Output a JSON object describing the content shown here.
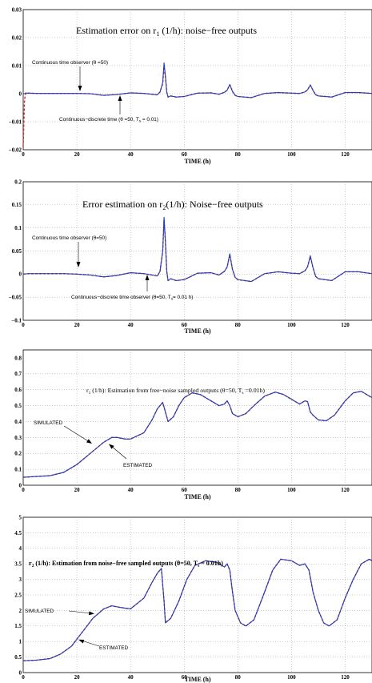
{
  "chart_data": [
    {
      "type": "line",
      "title_parts": [
        "Estimation error on r",
        "1",
        " (1/h): noise−free outputs"
      ],
      "xlabel": "TIME (h)",
      "xlim": [
        0,
        130
      ],
      "ylim": [
        -0.02,
        0.03
      ],
      "xticks": [
        0,
        20,
        40,
        60,
        80,
        100,
        120
      ],
      "yticks": [
        -0.02,
        -0.01,
        0,
        0.01,
        0.02,
        0.03
      ],
      "ytick_labels": [
        "−0.02",
        "−0.01",
        "0",
        "0.01",
        "0.02",
        "0.03"
      ],
      "annotations": [
        {
          "text": "Continuous time observer (θ =50)"
        },
        {
          "text": "Continuous−discrete time (θ =50, T",
          "sub": "s",
          "tail": " = 0.01)"
        }
      ],
      "series": [
        {
          "color": "#d62828",
          "dashed": true,
          "x": [
            0,
            0.5,
            1,
            2,
            5,
            10,
            15,
            20,
            25,
            30,
            35,
            40,
            45,
            50,
            51,
            52,
            52.5,
            53,
            53.5,
            54,
            55,
            57,
            60,
            65,
            70,
            73,
            75,
            76,
            77,
            78,
            79,
            80,
            85,
            90,
            95,
            100,
            103,
            105,
            106,
            107,
            108,
            109,
            110,
            115,
            120,
            125,
            130
          ],
          "y": [
            -0.019,
            -0.002,
            0.0003,
            0.0002,
            0.0001,
            0.0001,
            0.0001,
            0.0001,
            0,
            -0.0006,
            -0.0003,
            0.0003,
            0.0001,
            -0.0004,
            0.0006,
            0.0036,
            0.0095,
            0.006,
            0.0005,
            -0.0012,
            -0.0008,
            -0.0012,
            -0.001,
            0.0002,
            0.0003,
            -0.0002,
            0.0005,
            0.0012,
            0.0032,
            0.0008,
            -0.0006,
            -0.001,
            -0.0014,
            0.0001,
            0.0004,
            0.0002,
            0.0001,
            0.0006,
            0.0014,
            0.0031,
            0.0012,
            -0.0004,
            -0.0008,
            -0.0012,
            0.0004,
            0.0004,
            0.0001
          ]
        },
        {
          "color": "#1f3fbf",
          "dashed": false,
          "x": [
            0,
            0.5,
            1,
            2,
            5,
            10,
            15,
            20,
            25,
            30,
            35,
            40,
            45,
            50,
            51,
            52,
            52.5,
            53,
            53.5,
            54,
            55,
            57,
            60,
            65,
            70,
            73,
            75,
            76,
            77,
            78,
            79,
            80,
            85,
            90,
            95,
            100,
            103,
            105,
            106,
            107,
            108,
            109,
            110,
            115,
            120,
            125,
            130
          ],
          "y": [
            0,
            0,
            0.0002,
            0.0002,
            0.0001,
            0.0001,
            0.0001,
            0.0001,
            0,
            -0.0006,
            -0.0003,
            0.0003,
            0.0001,
            -0.0004,
            0.0006,
            0.004,
            0.011,
            0.0065,
            0.0005,
            -0.0012,
            -0.0008,
            -0.0012,
            -0.001,
            0.0002,
            0.0003,
            -0.0002,
            0.0005,
            0.0012,
            0.0033,
            0.0008,
            -0.0006,
            -0.001,
            -0.0014,
            0.0001,
            0.0004,
            0.0002,
            0.0001,
            0.0006,
            0.0014,
            0.0031,
            0.0012,
            -0.0004,
            -0.0008,
            -0.0012,
            0.0004,
            0.0004,
            0.0001
          ]
        }
      ]
    },
    {
      "type": "line",
      "title_parts": [
        "Error estimation on r",
        "2",
        "(1/h): Noise−free outputs"
      ],
      "xlabel": "TIME (h)",
      "xlim": [
        0,
        130
      ],
      "ylim": [
        -0.1,
        0.2
      ],
      "xticks": [
        0,
        20,
        40,
        60,
        80,
        100,
        120
      ],
      "yticks": [
        -0.1,
        -0.05,
        0,
        0.05,
        0.1,
        0.15,
        0.2
      ],
      "ytick_labels": [
        "−0.1",
        "−0.05",
        "0",
        "0.05",
        "0.1",
        "0.15",
        "0.2"
      ],
      "annotations": [
        {
          "text": "Continuous time observer (θ=50)"
        },
        {
          "text": "Continuous−discrete time observer (θ=50, T",
          "sub": "s",
          "tail": "= 0.01 h)"
        }
      ],
      "series": [
        {
          "color": "#d62828",
          "dashed": true,
          "x": [
            0,
            2,
            5,
            10,
            15,
            20,
            25,
            30,
            35,
            40,
            45,
            50,
            51,
            52,
            52.5,
            53,
            53.5,
            54,
            55,
            57,
            60,
            65,
            70,
            73,
            75,
            76,
            77,
            78,
            79,
            80,
            85,
            90,
            95,
            100,
            103,
            105,
            106,
            107,
            108,
            109,
            110,
            115,
            120,
            125,
            130
          ],
          "y": [
            0,
            0.001,
            0.001,
            0.001,
            0.001,
            0,
            -0.002,
            -0.006,
            -0.003,
            0.003,
            0.001,
            -0.004,
            0.006,
            0.05,
            0.118,
            0.07,
            0.006,
            -0.014,
            -0.01,
            -0.014,
            -0.012,
            0.002,
            0.003,
            -0.002,
            0.006,
            0.015,
            0.042,
            0.01,
            -0.007,
            -0.012,
            -0.016,
            0.001,
            0.005,
            0.002,
            0.001,
            0.007,
            0.016,
            0.038,
            0.014,
            -0.005,
            -0.01,
            -0.014,
            0.005,
            0.005,
            0.001
          ]
        },
        {
          "color": "#1f3fbf",
          "dashed": false,
          "x": [
            0,
            2,
            5,
            10,
            15,
            20,
            25,
            30,
            35,
            40,
            45,
            50,
            51,
            52,
            52.5,
            53,
            53.5,
            54,
            55,
            57,
            60,
            65,
            70,
            73,
            75,
            76,
            77,
            78,
            79,
            80,
            85,
            90,
            95,
            100,
            103,
            105,
            106,
            107,
            108,
            109,
            110,
            115,
            120,
            125,
            130
          ],
          "y": [
            0,
            0.001,
            0.001,
            0.001,
            0.001,
            0,
            -0.002,
            -0.006,
            -0.003,
            0.003,
            0.001,
            -0.004,
            0.006,
            0.05,
            0.123,
            0.072,
            0.006,
            -0.014,
            -0.01,
            -0.014,
            -0.012,
            0.002,
            0.003,
            -0.002,
            0.006,
            0.015,
            0.044,
            0.01,
            -0.007,
            -0.012,
            -0.016,
            0.001,
            0.005,
            0.002,
            0.001,
            0.007,
            0.016,
            0.04,
            0.014,
            -0.005,
            -0.01,
            -0.014,
            0.005,
            0.005,
            0.001
          ]
        }
      ]
    },
    {
      "type": "line",
      "title_parts": [
        "r",
        "1",
        " (1/h): Estimation from free−noise sampled outputs (θ=50, T",
        "s",
        " =0.01h)"
      ],
      "xlabel": "TIME (h)",
      "xlim": [
        0,
        130
      ],
      "ylim": [
        0,
        0.85
      ],
      "xticks": [
        0,
        20,
        40,
        60,
        80,
        100,
        120
      ],
      "yticks": [
        0,
        0.1,
        0.2,
        0.3,
        0.4,
        0.5,
        0.6,
        0.7,
        0.8
      ],
      "ytick_labels": [
        "0",
        "0.1",
        "0.2",
        "0.3",
        "0.4",
        "0.5",
        "0.6",
        "0.7",
        "0.8"
      ],
      "annotations": [
        {
          "text": "SIMULATED"
        },
        {
          "text": "ESTIMATED"
        }
      ],
      "series": [
        {
          "color": "#d62828",
          "dashed": true,
          "x": [
            0,
            5,
            10,
            15,
            20,
            25,
            30,
            33,
            35,
            38,
            40,
            45,
            48,
            50,
            52,
            53,
            54,
            56,
            58,
            60,
            63,
            66,
            70,
            73,
            75,
            76,
            77,
            78,
            80,
            83,
            86,
            90,
            94,
            97,
            100,
            103,
            105,
            106,
            107,
            108,
            110,
            113,
            116,
            120,
            123,
            126,
            130
          ],
          "y": [
            0.05,
            0.055,
            0.06,
            0.08,
            0.13,
            0.2,
            0.27,
            0.3,
            0.3,
            0.29,
            0.29,
            0.33,
            0.41,
            0.48,
            0.52,
            0.46,
            0.4,
            0.43,
            0.5,
            0.55,
            0.58,
            0.57,
            0.53,
            0.5,
            0.51,
            0.53,
            0.5,
            0.45,
            0.43,
            0.45,
            0.5,
            0.56,
            0.585,
            0.57,
            0.54,
            0.51,
            0.53,
            0.525,
            0.46,
            0.44,
            0.41,
            0.405,
            0.44,
            0.53,
            0.58,
            0.59,
            0.55
          ]
        },
        {
          "color": "#1f3fbf",
          "dashed": false,
          "x": [
            0,
            5,
            10,
            15,
            20,
            25,
            30,
            33,
            35,
            38,
            40,
            45,
            48,
            50,
            52,
            53,
            54,
            56,
            58,
            60,
            63,
            66,
            70,
            73,
            75,
            76,
            77,
            78,
            80,
            83,
            86,
            90,
            94,
            97,
            100,
            103,
            105,
            106,
            107,
            108,
            110,
            113,
            116,
            120,
            123,
            126,
            130
          ],
          "y": [
            0.05,
            0.055,
            0.06,
            0.08,
            0.13,
            0.2,
            0.27,
            0.3,
            0.3,
            0.29,
            0.29,
            0.33,
            0.41,
            0.48,
            0.52,
            0.46,
            0.4,
            0.43,
            0.5,
            0.55,
            0.58,
            0.57,
            0.53,
            0.5,
            0.51,
            0.53,
            0.5,
            0.45,
            0.43,
            0.45,
            0.5,
            0.56,
            0.585,
            0.57,
            0.54,
            0.51,
            0.53,
            0.525,
            0.46,
            0.44,
            0.41,
            0.405,
            0.44,
            0.53,
            0.58,
            0.59,
            0.55
          ]
        }
      ]
    },
    {
      "type": "line",
      "title_parts": [
        "r",
        "2",
        " (1/h): Estimation from noise−free sampled outputs (θ=50, T",
        "s",
        " = 0.01h)"
      ],
      "xlabel": "TIME (h)",
      "xlim": [
        0,
        130
      ],
      "ylim": [
        0,
        5
      ],
      "xticks": [
        0,
        20,
        40,
        60,
        80,
        100,
        120
      ],
      "yticks": [
        0,
        0.5,
        1,
        1.5,
        2,
        2.5,
        3,
        3.5,
        4,
        4.5,
        5
      ],
      "ytick_labels": [
        "0",
        "0.5",
        "1",
        "1.5",
        "2",
        "2.5",
        "3",
        "3.5",
        "4",
        "4.5",
        "5"
      ],
      "annotations": [
        {
          "text": "SIMULATED"
        },
        {
          "text": "ESTIMATED"
        }
      ],
      "series": [
        {
          "color": "#d62828",
          "dashed": true,
          "x": [
            0,
            5,
            10,
            14,
            18,
            22,
            26,
            30,
            33,
            36,
            40,
            45,
            48,
            50,
            51.5,
            52.5,
            53,
            55,
            58,
            61,
            64,
            68,
            72,
            75,
            76,
            77,
            78,
            79,
            81,
            83,
            86,
            90,
            93,
            96,
            100,
            103,
            105,
            106.5,
            108,
            110,
            112,
            114,
            117,
            120,
            123,
            126,
            129,
            130
          ],
          "y": [
            0.38,
            0.4,
            0.45,
            0.6,
            0.85,
            1.3,
            1.75,
            2.05,
            2.15,
            2.1,
            2.05,
            2.4,
            2.9,
            3.2,
            3.35,
            2.3,
            1.6,
            1.75,
            2.3,
            3.0,
            3.45,
            3.6,
            3.55,
            3.4,
            3.5,
            3.3,
            2.6,
            2.0,
            1.6,
            1.5,
            1.7,
            2.6,
            3.3,
            3.65,
            3.6,
            3.45,
            3.5,
            3.3,
            2.6,
            2.0,
            1.6,
            1.5,
            1.7,
            2.4,
            3.0,
            3.5,
            3.65,
            3.6
          ]
        },
        {
          "color": "#1f3fbf",
          "dashed": false,
          "x": [
            0,
            5,
            10,
            14,
            18,
            22,
            26,
            30,
            33,
            36,
            40,
            45,
            48,
            50,
            51.5,
            52.5,
            53,
            55,
            58,
            61,
            64,
            68,
            72,
            75,
            76,
            77,
            78,
            79,
            81,
            83,
            86,
            90,
            93,
            96,
            100,
            103,
            105,
            106.5,
            108,
            110,
            112,
            114,
            117,
            120,
            123,
            126,
            129,
            130
          ],
          "y": [
            0.38,
            0.4,
            0.45,
            0.6,
            0.85,
            1.3,
            1.75,
            2.05,
            2.15,
            2.1,
            2.05,
            2.4,
            2.9,
            3.2,
            3.35,
            2.3,
            1.6,
            1.75,
            2.3,
            3.0,
            3.45,
            3.6,
            3.55,
            3.4,
            3.5,
            3.3,
            2.6,
            2.0,
            1.6,
            1.5,
            1.7,
            2.6,
            3.3,
            3.65,
            3.6,
            3.45,
            3.5,
            3.3,
            2.6,
            2.0,
            1.6,
            1.5,
            1.7,
            2.4,
            3.0,
            3.5,
            3.65,
            3.6
          ]
        }
      ]
    }
  ]
}
